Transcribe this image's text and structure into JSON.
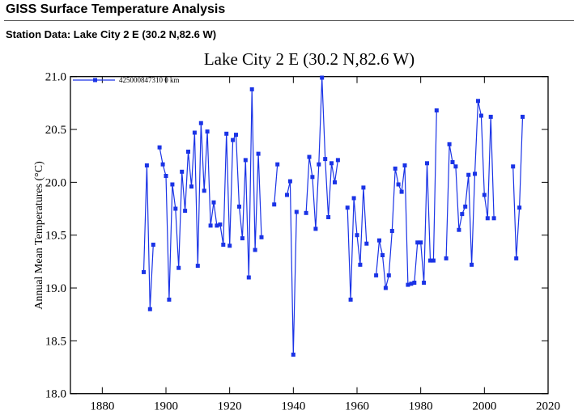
{
  "header": {
    "title": "GISS Surface Temperature Analysis",
    "station_line": "Station Data: Lake City 2 E (30.2 N,82.6 W)"
  },
  "colors": {
    "series": "#1a33e6",
    "axis": "#000000"
  },
  "chart_data": {
    "type": "line",
    "title": "Lake City 2 E (30.2 N,82.6 W)",
    "xlabel": "",
    "ylabel": "Annual Mean Temperatures (°C)",
    "xlim": [
      1870,
      2020
    ],
    "ylim": [
      18.0,
      21.0
    ],
    "xticks": [
      1880,
      1900,
      1920,
      1940,
      1960,
      1980,
      2000,
      2020
    ],
    "xtick_labels": [
      "1880",
      "1900",
      "1920",
      "1940",
      "1960",
      "1980",
      "2000",
      "2020"
    ],
    "yticks": [
      18.0,
      18.5,
      19.0,
      19.5,
      20.0,
      20.5,
      21.0
    ],
    "ytick_labels": [
      "18.0",
      "18.5",
      "19.0",
      "19.5",
      "20.0",
      "20.5",
      "21.0"
    ],
    "grid": false,
    "legend_position": "top-left",
    "series": [
      {
        "name": "425000847310 0 km",
        "segments": [
          {
            "x": [
              1893,
              1894,
              1895,
              1896
            ],
            "y": [
              19.15,
              20.16,
              18.8,
              19.41
            ]
          },
          {
            "x": [
              1898,
              1899,
              1900,
              1901,
              1902,
              1903,
              1904,
              1905,
              1906,
              1907,
              1908,
              1909,
              1910,
              1911,
              1912,
              1913,
              1914,
              1915,
              1916,
              1917,
              1918,
              1919,
              1920,
              1921,
              1922,
              1923,
              1924,
              1925,
              1926,
              1927,
              1928,
              1929,
              1930
            ],
            "y": [
              20.33,
              20.17,
              20.06,
              18.89,
              19.98,
              19.75,
              19.19,
              20.1,
              19.73,
              20.29,
              19.96,
              20.47,
              19.21,
              20.56,
              19.92,
              20.48,
              19.59,
              19.81,
              19.59,
              19.6,
              19.41,
              20.46,
              19.4,
              20.4,
              20.45,
              19.77,
              19.47,
              20.21,
              19.1,
              20.88,
              19.36,
              20.27,
              19.48
            ]
          },
          {
            "x": [
              1934,
              1935
            ],
            "y": [
              19.79,
              20.17
            ]
          },
          {
            "x": [
              1938,
              1939,
              1940,
              1941
            ],
            "y": [
              19.88,
              20.01,
              18.37,
              19.72
            ]
          },
          {
            "x": [
              1944,
              1945,
              1946,
              1947,
              1948,
              1949,
              1950,
              1951,
              1952,
              1953,
              1954
            ],
            "y": [
              19.71,
              20.24,
              20.05,
              19.56,
              20.17,
              20.99,
              20.22,
              19.67,
              20.18,
              20.0,
              20.21
            ]
          },
          {
            "x": [
              1957,
              1958,
              1959,
              1960,
              1961,
              1962,
              1963
            ],
            "y": [
              19.76,
              18.89,
              19.85,
              19.5,
              19.22,
              19.95,
              19.42
            ]
          },
          {
            "x": [
              1966,
              1967,
              1968,
              1969,
              1970,
              1971,
              1972,
              1973,
              1974,
              1975,
              1976,
              1977,
              1978,
              1979,
              1980,
              1981,
              1982,
              1983,
              1984,
              1985
            ],
            "y": [
              19.12,
              19.45,
              19.31,
              19.0,
              19.12,
              19.54,
              20.13,
              19.98,
              19.91,
              20.16,
              19.03,
              19.04,
              19.05,
              19.43,
              19.43,
              19.05,
              20.18,
              19.26,
              19.26,
              20.68
            ]
          },
          {
            "x": [
              1988,
              1989,
              1990,
              1991,
              1992,
              1993,
              1994,
              1995,
              1996,
              1997,
              1998,
              1999,
              2000,
              2001,
              2002,
              2003
            ],
            "y": [
              19.28,
              20.36,
              20.19,
              20.15,
              19.55,
              19.7,
              19.77,
              20.07,
              19.22,
              20.08,
              20.77,
              20.63,
              19.88,
              19.66,
              20.62,
              19.66
            ]
          },
          {
            "x": [
              2009,
              2010,
              2011,
              2012
            ],
            "y": [
              20.15,
              19.28,
              19.76,
              20.62
            ]
          }
        ]
      }
    ]
  }
}
